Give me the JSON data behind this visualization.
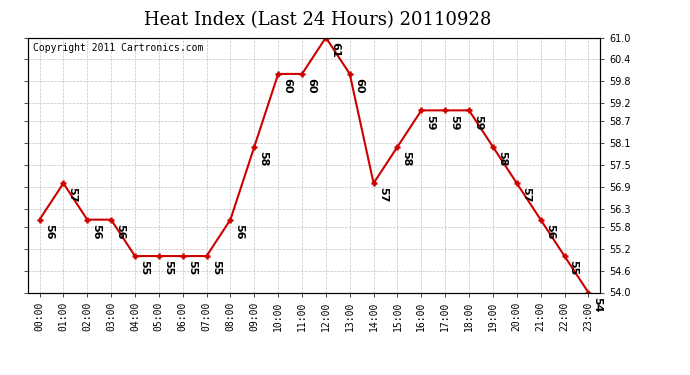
{
  "title": "Heat Index (Last 24 Hours) 20110928",
  "copyright": "Copyright 2011 Cartronics.com",
  "hours": [
    "00:00",
    "01:00",
    "02:00",
    "03:00",
    "04:00",
    "05:00",
    "06:00",
    "07:00",
    "08:00",
    "09:00",
    "10:00",
    "11:00",
    "12:00",
    "13:00",
    "14:00",
    "15:00",
    "16:00",
    "17:00",
    "18:00",
    "19:00",
    "20:00",
    "21:00",
    "22:00",
    "23:00"
  ],
  "values": [
    56,
    57,
    56,
    56,
    55,
    55,
    55,
    55,
    56,
    58,
    60,
    60,
    61,
    60,
    57,
    58,
    59,
    59,
    59,
    58,
    57,
    56,
    55,
    54
  ],
  "ylim": [
    54.0,
    61.0
  ],
  "yticks": [
    54.0,
    54.6,
    55.2,
    55.8,
    56.3,
    56.9,
    57.5,
    58.1,
    58.7,
    59.2,
    59.8,
    60.4,
    61.0
  ],
  "line_color": "#cc0000",
  "marker_color": "#cc0000",
  "grid_color": "#bbbbbb",
  "bg_color": "#ffffff",
  "outer_bg": "#ffffff",
  "title_fontsize": 13,
  "label_fontsize": 7,
  "annotation_fontsize": 8,
  "copyright_fontsize": 7
}
